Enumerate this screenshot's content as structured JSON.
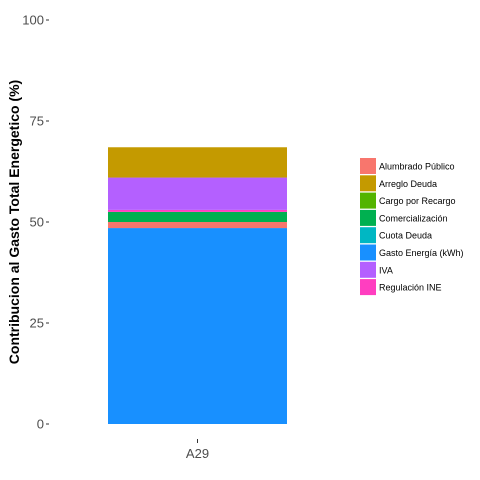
{
  "chart_data": {
    "type": "bar",
    "stacked": true,
    "categories": [
      "A29"
    ],
    "series": [
      {
        "name": "Alumbrado Público",
        "color": "#F8766D",
        "values": [
          1.5
        ]
      },
      {
        "name": "Arreglo Deuda",
        "color": "#C49A00",
        "values": [
          7.5
        ]
      },
      {
        "name": "Cargo por Recargo",
        "color": "#53B400",
        "values": [
          0
        ]
      },
      {
        "name": "Comercialización",
        "color": "#00B050",
        "values": [
          2.5
        ]
      },
      {
        "name": "Cuota Deuda",
        "color": "#00B7C3",
        "values": [
          0
        ]
      },
      {
        "name": "Gasto Energía (kWh)",
        "color": "#1890FF",
        "values": [
          48.5
        ]
      },
      {
        "name": "IVA",
        "color": "#B460FF",
        "values": [
          8.0
        ]
      },
      {
        "name": "Regulación INE",
        "color": "#FF3EC0",
        "values": [
          0.5
        ]
      }
    ],
    "stack_order_bottom_to_top": [
      "Gasto Energía (kWh)",
      "Alumbrado Público",
      "Comercialización",
      "Regulación INE",
      "IVA",
      "Arreglo Deuda"
    ],
    "y_ticks": [
      0,
      25,
      50,
      75,
      100
    ],
    "ylim": [
      0,
      100
    ],
    "ylabel": "Contribucion al Gasto Total Energetico (%)",
    "xlabel": "",
    "grid": false,
    "legend_position": "right"
  }
}
